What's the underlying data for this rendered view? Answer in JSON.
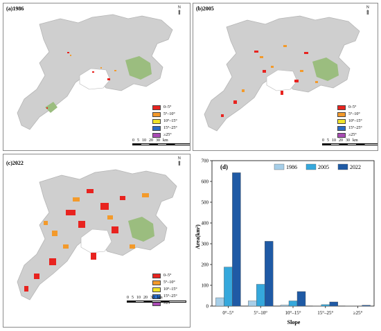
{
  "maps": [
    {
      "label": "(a)1986",
      "north": "N",
      "legend": [
        "0–5°",
        "5°–10°",
        "10°–15°",
        "15°–25°",
        "≥25°"
      ],
      "scale": [
        "0",
        "5",
        "10",
        "20",
        "30",
        "km"
      ]
    },
    {
      "label": "(b)2005",
      "north": "N",
      "legend": [
        "0–5°",
        "5°–10°",
        "10°–15°",
        "15°–25°",
        "≥25°"
      ],
      "scale": [
        "0",
        "5",
        "10",
        "20",
        "30",
        "km"
      ]
    },
    {
      "label": "(c)2022",
      "north": "N",
      "legend": [
        "0–5°",
        "5°–10°",
        "10°–15°",
        "15°–25°",
        "≥25°"
      ],
      "scale": [
        "0",
        "5",
        "10",
        "20",
        "30",
        "km"
      ]
    }
  ],
  "legend_colors": [
    "#e8231f",
    "#f39a2b",
    "#f1e42a",
    "#2a6bc4",
    "#a94bb4"
  ],
  "map_colors": {
    "terrain": "#cfcfcf",
    "vegetation": "#9bbd7f",
    "water": "#ffffff"
  },
  "chart_data": {
    "type": "bar",
    "panel_label": "(d)",
    "categories": [
      "0°–5°",
      "5°–10°",
      "10°–15°",
      "15°–25°",
      "≥25°"
    ],
    "series": [
      {
        "name": "1986",
        "color": "#a6cee8",
        "values": [
          40,
          25,
          5,
          1,
          0.5
        ]
      },
      {
        "name": "2005",
        "color": "#35a8dc",
        "values": [
          188,
          105,
          25,
          7,
          1
        ]
      },
      {
        "name": "2022",
        "color": "#1f5aa5",
        "values": [
          642,
          312,
          70,
          20,
          4
        ]
      }
    ],
    "xlabel": "Slope",
    "ylabel": "Area(km²)",
    "ylim": [
      0,
      700
    ],
    "yticks": [
      0,
      100,
      200,
      300,
      400,
      500,
      600,
      700
    ],
    "legend_position": "top-right",
    "grid": false
  }
}
